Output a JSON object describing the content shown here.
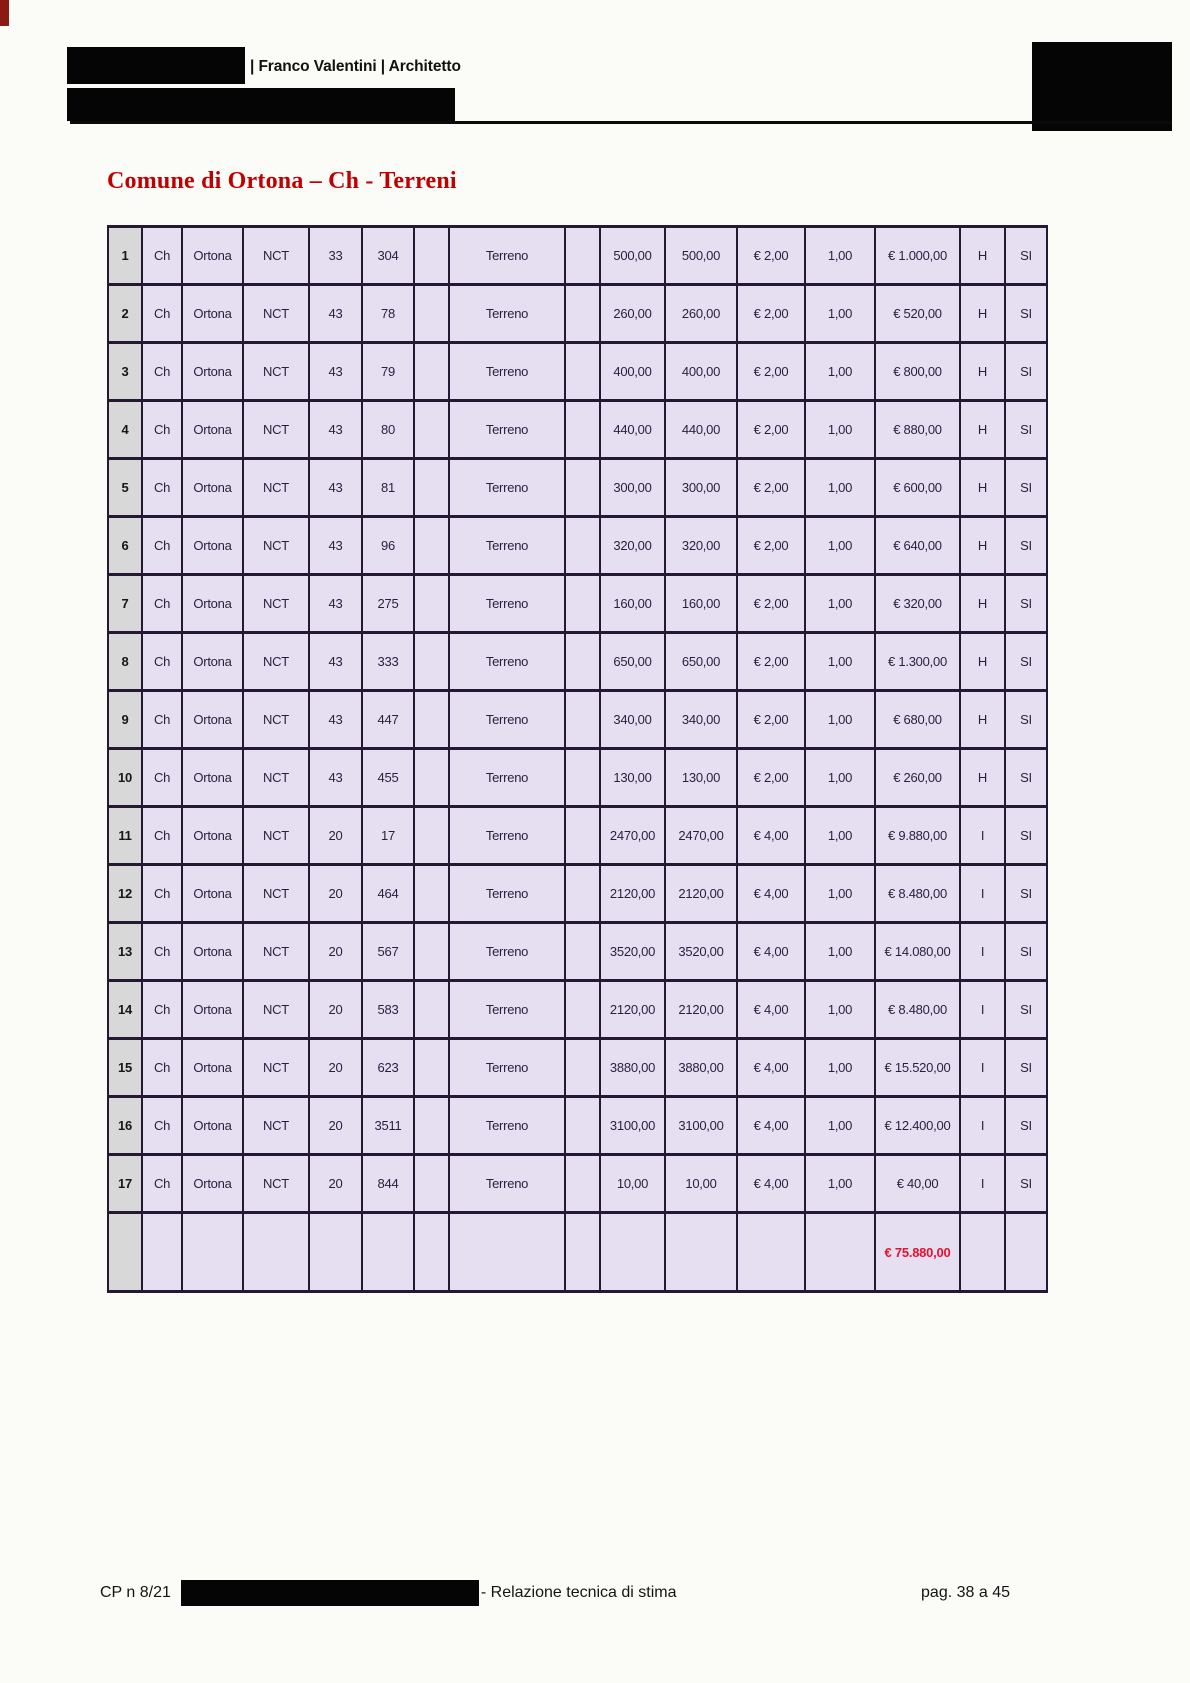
{
  "header": {
    "name_title": "| Franco Valentini | Architetto"
  },
  "title": "Comune di Ortona – Ch - Terreni",
  "colors": {
    "title_red": "#c00000",
    "total_red": "#e8112d",
    "cell_lavender": "#e6dff2",
    "rownum_gray": "#d8d8d8",
    "border_dark": "#241832"
  },
  "table": {
    "rows": [
      {
        "n": "1",
        "prov": "Ch",
        "comune": "Ortona",
        "catasto": "NCT",
        "foglio": "33",
        "particella": "304",
        "qualita": "Terreno",
        "sup1": "500,00",
        "sup2": "500,00",
        "prezzo": "€ 2,00",
        "coeff": "1,00",
        "totale": "€ 1.000,00",
        "classe": "H",
        "conforme": "SI"
      },
      {
        "n": "2",
        "prov": "Ch",
        "comune": "Ortona",
        "catasto": "NCT",
        "foglio": "43",
        "particella": "78",
        "qualita": "Terreno",
        "sup1": "260,00",
        "sup2": "260,00",
        "prezzo": "€ 2,00",
        "coeff": "1,00",
        "totale": "€ 520,00",
        "classe": "H",
        "conforme": "SI"
      },
      {
        "n": "3",
        "prov": "Ch",
        "comune": "Ortona",
        "catasto": "NCT",
        "foglio": "43",
        "particella": "79",
        "qualita": "Terreno",
        "sup1": "400,00",
        "sup2": "400,00",
        "prezzo": "€ 2,00",
        "coeff": "1,00",
        "totale": "€ 800,00",
        "classe": "H",
        "conforme": "SI"
      },
      {
        "n": "4",
        "prov": "Ch",
        "comune": "Ortona",
        "catasto": "NCT",
        "foglio": "43",
        "particella": "80",
        "qualita": "Terreno",
        "sup1": "440,00",
        "sup2": "440,00",
        "prezzo": "€ 2,00",
        "coeff": "1,00",
        "totale": "€ 880,00",
        "classe": "H",
        "conforme": "SI"
      },
      {
        "n": "5",
        "prov": "Ch",
        "comune": "Ortona",
        "catasto": "NCT",
        "foglio": "43",
        "particella": "81",
        "qualita": "Terreno",
        "sup1": "300,00",
        "sup2": "300,00",
        "prezzo": "€ 2,00",
        "coeff": "1,00",
        "totale": "€ 600,00",
        "classe": "H",
        "conforme": "SI"
      },
      {
        "n": "6",
        "prov": "Ch",
        "comune": "Ortona",
        "catasto": "NCT",
        "foglio": "43",
        "particella": "96",
        "qualita": "Terreno",
        "sup1": "320,00",
        "sup2": "320,00",
        "prezzo": "€ 2,00",
        "coeff": "1,00",
        "totale": "€ 640,00",
        "classe": "H",
        "conforme": "SI"
      },
      {
        "n": "7",
        "prov": "Ch",
        "comune": "Ortona",
        "catasto": "NCT",
        "foglio": "43",
        "particella": "275",
        "qualita": "Terreno",
        "sup1": "160,00",
        "sup2": "160,00",
        "prezzo": "€ 2,00",
        "coeff": "1,00",
        "totale": "€ 320,00",
        "classe": "H",
        "conforme": "SI"
      },
      {
        "n": "8",
        "prov": "Ch",
        "comune": "Ortona",
        "catasto": "NCT",
        "foglio": "43",
        "particella": "333",
        "qualita": "Terreno",
        "sup1": "650,00",
        "sup2": "650,00",
        "prezzo": "€ 2,00",
        "coeff": "1,00",
        "totale": "€ 1.300,00",
        "classe": "H",
        "conforme": "SI"
      },
      {
        "n": "9",
        "prov": "Ch",
        "comune": "Ortona",
        "catasto": "NCT",
        "foglio": "43",
        "particella": "447",
        "qualita": "Terreno",
        "sup1": "340,00",
        "sup2": "340,00",
        "prezzo": "€ 2,00",
        "coeff": "1,00",
        "totale": "€ 680,00",
        "classe": "H",
        "conforme": "SI"
      },
      {
        "n": "10",
        "prov": "Ch",
        "comune": "Ortona",
        "catasto": "NCT",
        "foglio": "43",
        "particella": "455",
        "qualita": "Terreno",
        "sup1": "130,00",
        "sup2": "130,00",
        "prezzo": "€ 2,00",
        "coeff": "1,00",
        "totale": "€ 260,00",
        "classe": "H",
        "conforme": "SI"
      },
      {
        "n": "11",
        "prov": "Ch",
        "comune": "Ortona",
        "catasto": "NCT",
        "foglio": "20",
        "particella": "17",
        "qualita": "Terreno",
        "sup1": "2470,00",
        "sup2": "2470,00",
        "prezzo": "€ 4,00",
        "coeff": "1,00",
        "totale": "€ 9.880,00",
        "classe": "I",
        "conforme": "SI"
      },
      {
        "n": "12",
        "prov": "Ch",
        "comune": "Ortona",
        "catasto": "NCT",
        "foglio": "20",
        "particella": "464",
        "qualita": "Terreno",
        "sup1": "2120,00",
        "sup2": "2120,00",
        "prezzo": "€ 4,00",
        "coeff": "1,00",
        "totale": "€ 8.480,00",
        "classe": "I",
        "conforme": "SI"
      },
      {
        "n": "13",
        "prov": "Ch",
        "comune": "Ortona",
        "catasto": "NCT",
        "foglio": "20",
        "particella": "567",
        "qualita": "Terreno",
        "sup1": "3520,00",
        "sup2": "3520,00",
        "prezzo": "€ 4,00",
        "coeff": "1,00",
        "totale": "€ 14.080,00",
        "classe": "I",
        "conforme": "SI"
      },
      {
        "n": "14",
        "prov": "Ch",
        "comune": "Ortona",
        "catasto": "NCT",
        "foglio": "20",
        "particella": "583",
        "qualita": "Terreno",
        "sup1": "2120,00",
        "sup2": "2120,00",
        "prezzo": "€ 4,00",
        "coeff": "1,00",
        "totale": "€ 8.480,00",
        "classe": "I",
        "conforme": "SI"
      },
      {
        "n": "15",
        "prov": "Ch",
        "comune": "Ortona",
        "catasto": "NCT",
        "foglio": "20",
        "particella": "623",
        "qualita": "Terreno",
        "sup1": "3880,00",
        "sup2": "3880,00",
        "prezzo": "€ 4,00",
        "coeff": "1,00",
        "totale": "€ 15.520,00",
        "classe": "I",
        "conforme": "SI"
      },
      {
        "n": "16",
        "prov": "Ch",
        "comune": "Ortona",
        "catasto": "NCT",
        "foglio": "20",
        "particella": "3511",
        "qualita": "Terreno",
        "sup1": "3100,00",
        "sup2": "3100,00",
        "prezzo": "€ 4,00",
        "coeff": "1,00",
        "totale": "€ 12.400,00",
        "classe": "I",
        "conforme": "SI"
      },
      {
        "n": "17",
        "prov": "Ch",
        "comune": "Ortona",
        "catasto": "NCT",
        "foglio": "20",
        "particella": "844",
        "qualita": "Terreno",
        "sup1": "10,00",
        "sup2": "10,00",
        "prezzo": "€ 4,00",
        "coeff": "1,00",
        "totale": "€ 40,00",
        "classe": "I",
        "conforme": "SI"
      }
    ],
    "total": "€ 75.880,00"
  },
  "footer": {
    "left": "CP n 8/21",
    "middle": "- Relazione tecnica di stima",
    "right": "pag. 38 a 45"
  }
}
